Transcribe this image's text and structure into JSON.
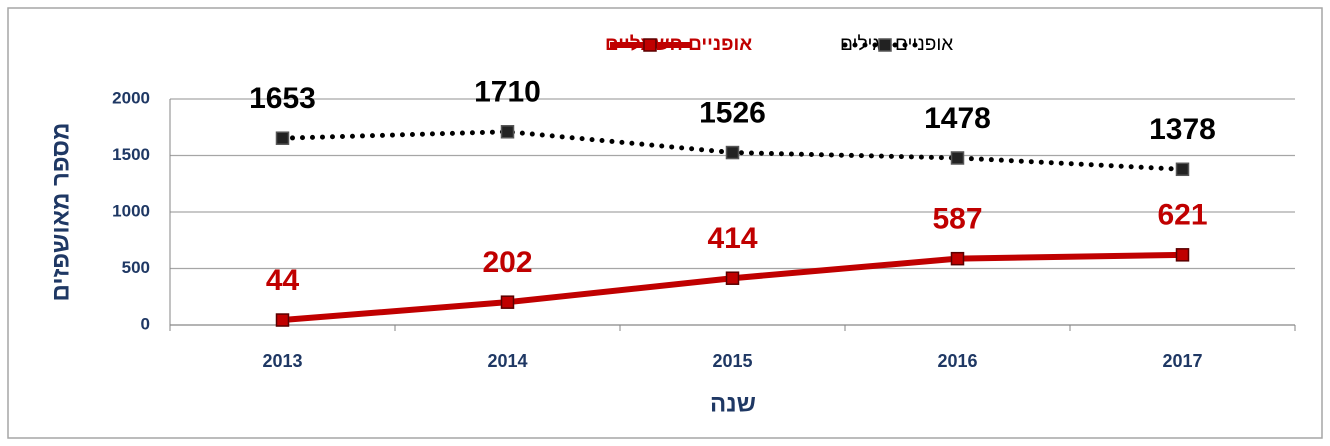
{
  "chart_data": {
    "type": "line",
    "categories": [
      "2013",
      "2014",
      "2015",
      "2016",
      "2017"
    ],
    "series": [
      {
        "name": "אופניים רגילים",
        "color": "#000000",
        "values": [
          1653,
          1710,
          1526,
          1478,
          1378
        ]
      },
      {
        "name": "אופניים חשמליים",
        "color": "#c00000",
        "values": [
          44,
          202,
          414,
          587,
          621
        ]
      }
    ],
    "ylim": [
      0,
      2000
    ],
    "yticks": [
      0,
      500,
      1000,
      1500,
      2000
    ],
    "grid": true,
    "y_label": "מספר מאושפזים",
    "x_label": "שנה",
    "legend": "top"
  }
}
